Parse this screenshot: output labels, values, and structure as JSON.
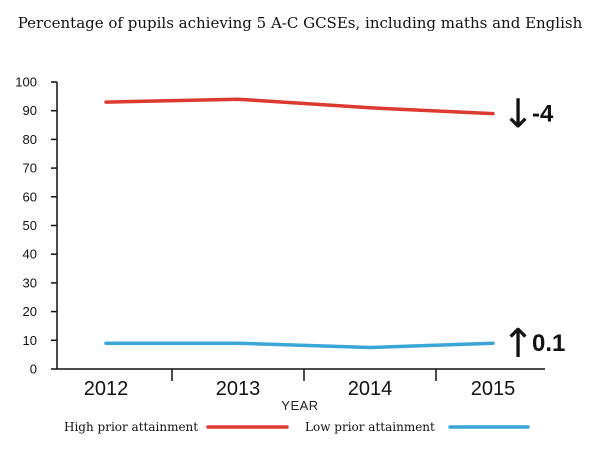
{
  "chart_data": {
    "type": "line",
    "title": "Percentage of pupils achieving 5 A-C GCSEs, including maths and English",
    "xlabel": "YEAR",
    "ylabel": "",
    "categories": [
      "2012",
      "2013",
      "2014",
      "2015"
    ],
    "ylim": [
      0,
      100
    ],
    "yticks": [
      0,
      10,
      20,
      30,
      40,
      50,
      60,
      70,
      80,
      90,
      100
    ],
    "grid": false,
    "legend_placement": "bottom",
    "series": [
      {
        "name": "High prior attainment",
        "color": "#dd3a2f",
        "values": [
          93,
          94,
          91,
          89
        ]
      },
      {
        "name": "Low prior attainment",
        "color": "#3aa6d8",
        "values": [
          9,
          9,
          7.5,
          9
        ]
      }
    ],
    "annotations": [
      {
        "series": "High prior attainment",
        "direction": "down",
        "arrow": "↓",
        "text": "-4"
      },
      {
        "series": "Low prior attainment",
        "direction": "up",
        "arrow": "↑",
        "text": "0.1"
      }
    ]
  }
}
